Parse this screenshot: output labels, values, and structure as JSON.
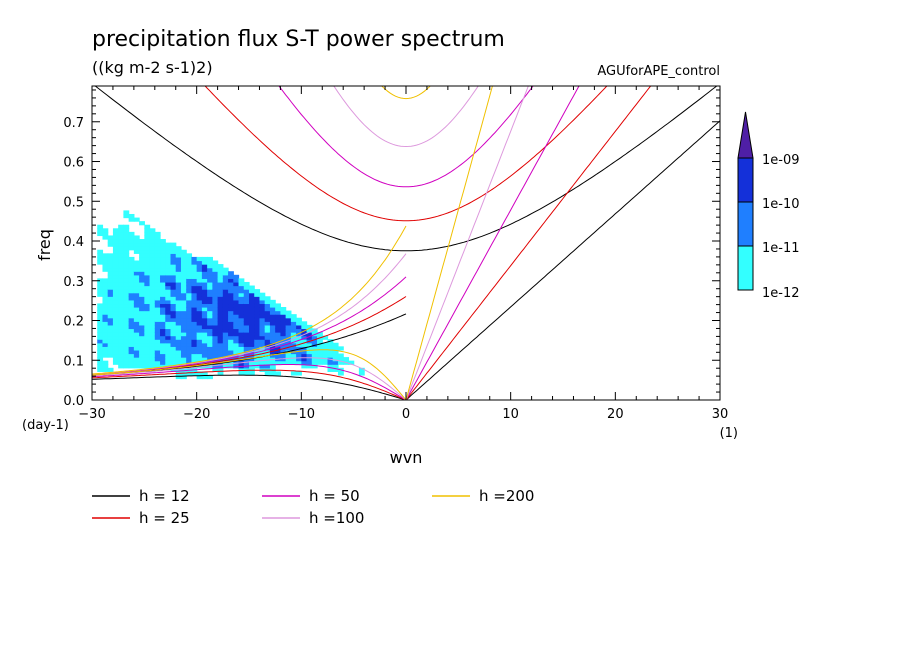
{
  "chart_data": {
    "type": "contour",
    "title": "precipitation flux S-T power spectrum",
    "subtitle": "((kg m-2 s-1)2)",
    "experiment": "AGUforAPE_control",
    "xlabel": "wvn",
    "ylabel": "freq",
    "xunit": "(1)",
    "yunit": "(day-1)",
    "xlim": [
      -30,
      30
    ],
    "ylim": [
      0,
      0.79
    ],
    "xticks": [
      -30,
      -20,
      -10,
      0,
      10,
      20,
      30
    ],
    "yticks": [
      0.0,
      0.1,
      0.2,
      0.3,
      0.4,
      0.5,
      0.6,
      0.7
    ],
    "xtick_labels": [
      "−30",
      "−20",
      "−10",
      "0",
      "10",
      "20",
      "30"
    ],
    "ytick_labels": [
      "0.0",
      "0.1",
      "0.2",
      "0.3",
      "0.4",
      "0.5",
      "0.6",
      "0.7"
    ],
    "colorbar": {
      "labels": [
        "1e-12",
        "1e-11",
        "1e-10",
        "1e-09"
      ],
      "colors": [
        "#33ffff",
        "#1f7fff",
        "#1430d9",
        "#4f1fa6"
      ]
    },
    "dispersion_series": [
      {
        "name": "h = 12",
        "h": 12,
        "color": "#000000"
      },
      {
        "name": "h = 25",
        "h": 25,
        "color": "#e00000"
      },
      {
        "name": "h = 50",
        "h": 50,
        "color": "#d000c0"
      },
      {
        "name": "h =100",
        "h": 100,
        "color": "#dd99dd"
      },
      {
        "name": "h =200",
        "h": 200,
        "color": "#f0c000"
      }
    ],
    "legend_placement": "bottom",
    "grid": false
  }
}
